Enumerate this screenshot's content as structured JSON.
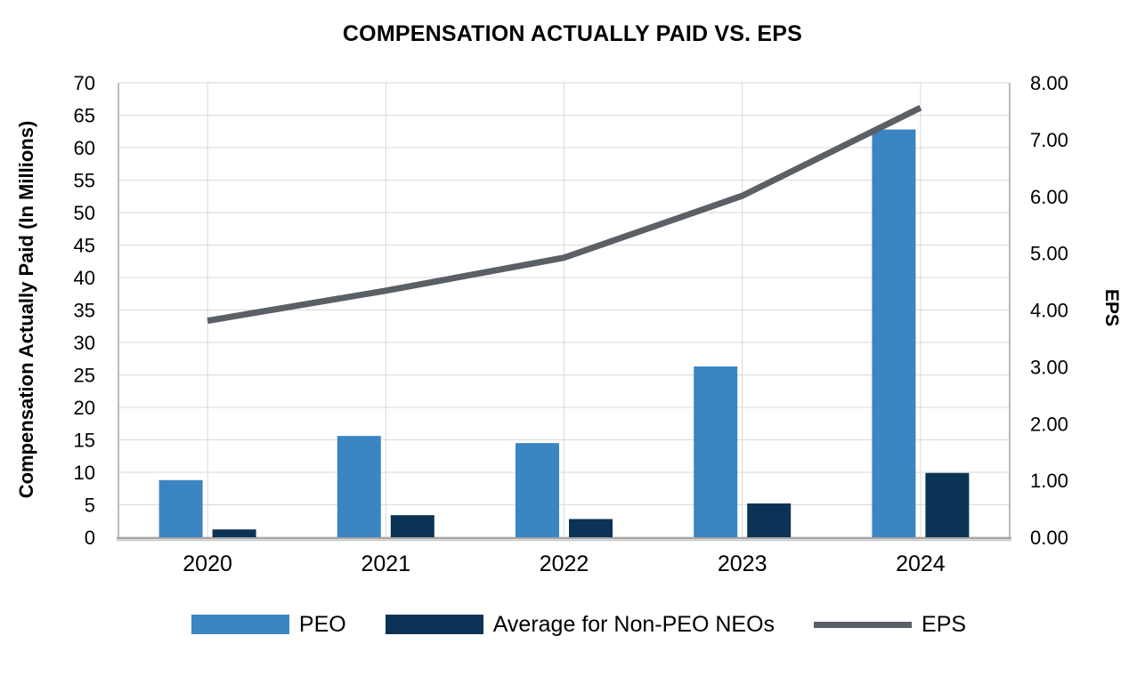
{
  "chart_data": {
    "type": "combo-bar-line",
    "title": "COMPENSATION ACTUALLY PAID VS. EPS",
    "categories": [
      "2020",
      "2021",
      "2022",
      "2023",
      "2024"
    ],
    "bar_series": [
      {
        "name": "PEO",
        "color": "#3B85C2",
        "axis": "left",
        "values": [
          8.8,
          15.6,
          14.5,
          26.3,
          62.8
        ]
      },
      {
        "name": "Average for Non-PEO NEOs",
        "color": "#0B3355",
        "axis": "left",
        "values": [
          1.2,
          3.4,
          2.8,
          5.2,
          9.9
        ]
      }
    ],
    "line_series": {
      "name": "EPS",
      "color": "#5B5F66",
      "axis": "right",
      "values": [
        3.81,
        4.34,
        4.92,
        6.01,
        7.56
      ]
    },
    "left_axis": {
      "title": "Compensation Actually Paid (In Millions)",
      "min": 0,
      "max": 70,
      "step": 5,
      "tick_labels": [
        "0",
        "5",
        "10",
        "15",
        "20",
        "25",
        "30",
        "35",
        "40",
        "45",
        "50",
        "55",
        "60",
        "65",
        "70"
      ]
    },
    "right_axis": {
      "title": "EPS",
      "min": 0,
      "max": 8,
      "step": 1,
      "tick_labels": [
        "0.00",
        "1.00",
        "2.00",
        "3.00",
        "4.00",
        "5.00",
        "6.00",
        "7.00",
        "8.00"
      ]
    },
    "grid": true,
    "legend_position": "bottom",
    "colors": {
      "gridline": "#D9D9D9",
      "axis_line": "#A6A6A6",
      "axis_shadow": "#C9C9C9",
      "text": "#000000",
      "background": "#FFFFFF"
    }
  }
}
